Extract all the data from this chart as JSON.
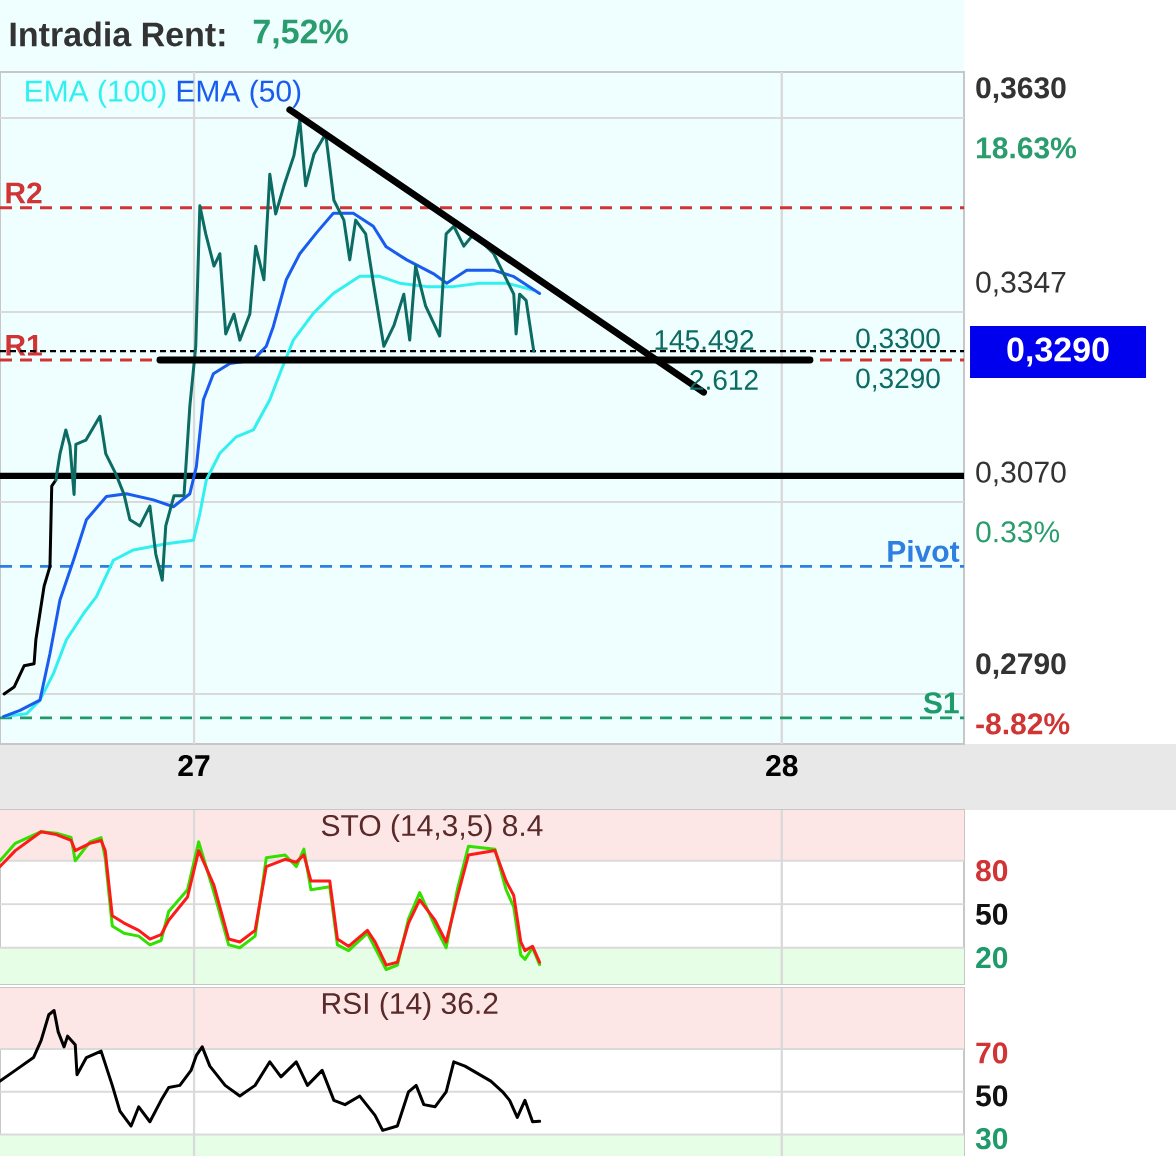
{
  "chart_data": [
    {
      "type": "line",
      "title": "Intradia Rent:",
      "subtitle": "7,52%",
      "annotations": [
        "145.492",
        "2.612",
        "0,3300",
        "0,3290",
        "0,3290"
      ],
      "xlim": [
        26.67,
        28.31
      ],
      "xticks": [
        27,
        28
      ],
      "ylim": [
        0.2717,
        0.3697
      ],
      "yticks": [
        {
          "value": 0.363,
          "label": "0,3630"
        },
        {
          "value": 0.3347,
          "label": "0,3347"
        },
        {
          "value": 0.307,
          "label": "0,3070"
        },
        {
          "value": 0.279,
          "label": "0,2790"
        }
      ],
      "y2lim": [
        -11.21,
        20.82
      ],
      "y2ticks": [
        {
          "value": 18.63,
          "label": "18.63%"
        },
        {
          "value": 0.33,
          "label": "0.33%"
        },
        {
          "value": -8.82,
          "label": "-8.82%"
        }
      ],
      "grid": true,
      "legend": "top left",
      "ref_lines": [
        {
          "axis": "y",
          "value": 0.3499,
          "label": "R2",
          "color": "#d03434",
          "line_style": "dashed"
        },
        {
          "axis": "y",
          "value": 0.3277,
          "label": "R1",
          "color": "#d03434",
          "line_style": "dashed"
        },
        {
          "axis": "y",
          "value": 0.329,
          "color": "#000000",
          "line_style": "dotted"
        },
        {
          "axis": "y",
          "value": 0.3108,
          "color": "#000000",
          "line_style": "solid"
        },
        {
          "axis": "y",
          "value": 0.2976,
          "label": "Pivot",
          "color": "#2f7fe0",
          "line_style": "dashed"
        },
        {
          "axis": "y",
          "value": 0.2755,
          "label": "S1",
          "color": "#1f9a6a",
          "line_style": "dashed"
        }
      ],
      "series": [
        {
          "name": "EMA (100)",
          "color": "#33f0f0",
          "x": [
            26.676,
            26.715,
            26.738,
            26.761,
            26.783,
            26.812,
            26.834,
            26.863,
            26.897,
            26.953,
            26.999,
            27.01,
            27.021,
            27.044,
            27.072,
            27.101,
            27.129,
            27.146,
            27.169,
            27.203,
            27.237,
            27.282,
            27.316,
            27.35,
            27.396,
            27.441,
            27.486,
            27.532,
            27.577
          ],
          "values": [
            0.2757,
            0.2761,
            0.2781,
            0.282,
            0.2869,
            0.2907,
            0.2932,
            0.2985,
            0.3,
            0.3009,
            0.3014,
            0.3053,
            0.3102,
            0.3141,
            0.3165,
            0.3175,
            0.3219,
            0.3257,
            0.3306,
            0.3345,
            0.3374,
            0.3399,
            0.3399,
            0.3389,
            0.3384,
            0.3384,
            0.3389,
            0.3389,
            0.3379
          ]
        },
        {
          "name": "EMA (50)",
          "color": "#1a5cf0",
          "x": [
            26.676,
            26.704,
            26.738,
            26.755,
            26.772,
            26.795,
            26.817,
            26.851,
            26.885,
            26.931,
            26.965,
            26.993,
            27.004,
            27.016,
            27.033,
            27.061,
            27.101,
            27.123,
            27.135,
            27.157,
            27.18,
            27.208,
            27.237,
            27.271,
            27.305,
            27.327,
            27.362,
            27.407,
            27.43,
            27.464,
            27.509,
            27.543,
            27.588
          ],
          "values": [
            0.2757,
            0.2766,
            0.2781,
            0.2849,
            0.2927,
            0.2985,
            0.3044,
            0.3078,
            0.3082,
            0.3073,
            0.3063,
            0.3082,
            0.3121,
            0.3219,
            0.3257,
            0.3272,
            0.3277,
            0.3297,
            0.3326,
            0.3394,
            0.3432,
            0.3462,
            0.3491,
            0.3491,
            0.3472,
            0.3442,
            0.3423,
            0.3403,
            0.3389,
            0.3408,
            0.3408,
            0.3399,
            0.3374
          ]
        },
        {
          "color": "#000000",
          "x": [
            26.677,
            26.694,
            26.711,
            26.728,
            26.731,
            26.745,
            26.755,
            26.758,
            26.765
          ],
          "values": [
            0.279,
            0.28,
            0.2831,
            0.2834,
            0.2869,
            0.2947,
            0.2976,
            0.3093,
            0.3102
          ]
        },
        {
          "color": "#0c6b63",
          "x": [
            26.765,
            26.772,
            26.782,
            26.789,
            26.796,
            26.799,
            26.816,
            26.84,
            26.85,
            26.867,
            26.881,
            26.891,
            26.908,
            26.925,
            26.935,
            26.946,
            26.952,
            26.966,
            26.983,
            26.993,
            27.003,
            27.01,
            27.02,
            27.034,
            27.044,
            27.054,
            27.068,
            27.078,
            27.095,
            27.105,
            27.119,
            27.129,
            27.139,
            27.153,
            27.17,
            27.18,
            27.19,
            27.204,
            27.224,
            27.238,
            27.255,
            27.265,
            27.275,
            27.292,
            27.306,
            27.323,
            27.34,
            27.357,
            27.367,
            27.377,
            27.394,
            27.418,
            27.429,
            27.442,
            27.459,
            27.476,
            27.51,
            27.544,
            27.548,
            27.554,
            27.565,
            27.578
          ],
          "values": [
            0.3102,
            0.314,
            0.3175,
            0.3152,
            0.3081,
            0.3154,
            0.316,
            0.3195,
            0.314,
            0.3111,
            0.3081,
            0.3044,
            0.3035,
            0.3064,
            0.2994,
            0.2956,
            0.3035,
            0.3079,
            0.3079,
            0.321,
            0.3297,
            0.3502,
            0.3461,
            0.3414,
            0.3432,
            0.3315,
            0.3344,
            0.3306,
            0.3344,
            0.3443,
            0.3394,
            0.3548,
            0.349,
            0.3531,
            0.3575,
            0.3627,
            0.3531,
            0.3577,
            0.3607,
            0.351,
            0.3481,
            0.3423,
            0.3481,
            0.3461,
            0.3385,
            0.3297,
            0.3327,
            0.3373,
            0.3306,
            0.3414,
            0.3356,
            0.3312,
            0.3461,
            0.3472,
            0.3443,
            0.3461,
            0.3432,
            0.3373,
            0.3315,
            0.3373,
            0.3364,
            0.329
          ]
        },
        {
          "color": "#000000",
          "x": [
            26.942,
            28.048
          ],
          "values": [
            0.3277,
            0.3277
          ]
        },
        {
          "color": "#000000",
          "x": [
            27.163,
            27.867
          ],
          "values": [
            0.3642,
            0.323
          ]
        }
      ]
    },
    {
      "type": "line",
      "title": "STO (14,3,5) 8.4",
      "xlim": [
        26.67,
        28.31
      ],
      "xticks": [
        27,
        28
      ],
      "ylim": [
        -5,
        115
      ],
      "yticks": [
        80,
        50,
        20
      ],
      "tick_labels": "y",
      "grid": true,
      "bands": [
        {
          "axis": "y",
          "from": 80,
          "to": 115,
          "color": "#fde6e6"
        },
        {
          "axis": "y",
          "from": -5,
          "to": 20,
          "color": "#e6fde6"
        }
      ],
      "series": [
        {
          "color": "#33e000",
          "x": [
            26.67,
            26.696,
            26.74,
            26.766,
            26.791,
            26.798,
            26.823,
            26.842,
            26.849,
            26.861,
            26.881,
            26.906,
            26.925,
            26.944,
            26.957,
            26.989,
            27.008,
            27.034,
            27.059,
            27.078,
            27.104,
            27.123,
            27.155,
            27.174,
            27.187,
            27.199,
            27.231,
            27.244,
            27.263,
            27.295,
            27.308,
            27.327,
            27.346,
            27.365,
            27.384,
            27.41,
            27.429,
            27.448,
            27.467,
            27.512,
            27.531,
            27.544,
            27.556,
            27.563,
            27.576,
            27.588
          ],
          "values": [
            80,
            92,
            100,
            99,
            96,
            80,
            93,
            96,
            82,
            35,
            30,
            28,
            22,
            25,
            45,
            60,
            93,
            58,
            22,
            20,
            28,
            82,
            84,
            76,
            88,
            60,
            62,
            22,
            18,
            30,
            20,
            5,
            8,
            40,
            58,
            35,
            20,
            60,
            90,
            88,
            60,
            48,
            15,
            12,
            20,
            8.4
          ]
        },
        {
          "color": "#ff1a1a",
          "x": [
            26.67,
            26.696,
            26.74,
            26.766,
            26.791,
            26.798,
            26.823,
            26.842,
            26.849,
            26.861,
            26.881,
            26.906,
            26.925,
            26.944,
            26.957,
            26.989,
            27.008,
            27.034,
            27.059,
            27.078,
            27.104,
            27.123,
            27.155,
            27.174,
            27.187,
            27.199,
            27.231,
            27.244,
            27.263,
            27.295,
            27.308,
            27.327,
            27.346,
            27.365,
            27.384,
            27.41,
            27.429,
            27.448,
            27.467,
            27.512,
            27.531,
            27.544,
            27.556,
            27.563,
            27.576,
            27.588
          ],
          "values": [
            76,
            87,
            100,
            98,
            94,
            87,
            92,
            94,
            87,
            42,
            37,
            32,
            26,
            29,
            39,
            55,
            87,
            63,
            26,
            24,
            32,
            76,
            81,
            79,
            84,
            66,
            66,
            26,
            21,
            32,
            24,
            8,
            10,
            37,
            53,
            39,
            24,
            55,
            84,
            87,
            66,
            56,
            24,
            18,
            21,
            10
          ]
        }
      ]
    },
    {
      "type": "line",
      "title": "RSI (14) 36.2",
      "xlim": [
        26.67,
        28.31
      ],
      "xticks": [
        27,
        28
      ],
      "ylim": [
        20,
        98.5
      ],
      "yticks": [
        70,
        50,
        30
      ],
      "tick_labels": "y",
      "grid": true,
      "bands": [
        {
          "axis": "y",
          "from": 70,
          "to": 98.5,
          "color": "#fde6e6"
        },
        {
          "axis": "y",
          "from": 20,
          "to": 30,
          "color": "#e6fde6"
        }
      ],
      "series": [
        {
          "color": "#000000",
          "x": [
            26.67,
            26.696,
            26.727,
            26.74,
            26.753,
            26.762,
            26.769,
            26.779,
            26.785,
            26.798,
            26.801,
            26.817,
            26.842,
            26.861,
            26.874,
            26.893,
            26.906,
            26.925,
            26.944,
            26.957,
            26.976,
            26.995,
            27.004,
            27.014,
            27.027,
            27.053,
            27.078,
            27.104,
            27.129,
            27.148,
            27.174,
            27.193,
            27.218,
            27.238,
            27.257,
            27.282,
            27.308,
            27.321,
            27.346,
            27.365,
            27.378,
            27.391,
            27.41,
            27.429,
            27.442,
            27.461,
            27.505,
            27.525,
            27.537,
            27.55,
            27.563,
            27.576,
            27.588
          ],
          "values": [
            55,
            60,
            66,
            74,
            86,
            88,
            78,
            71,
            76,
            72,
            58,
            66,
            69,
            53,
            41,
            34,
            43,
            36,
            46,
            52,
            53,
            60,
            67,
            71,
            62,
            53,
            48,
            53,
            64,
            57,
            64,
            53,
            60,
            46,
            44,
            48,
            39,
            32,
            34,
            50,
            53,
            44,
            43,
            50,
            64,
            62,
            55,
            50,
            46,
            38,
            46,
            36,
            36.2
          ]
        }
      ]
    }
  ]
}
